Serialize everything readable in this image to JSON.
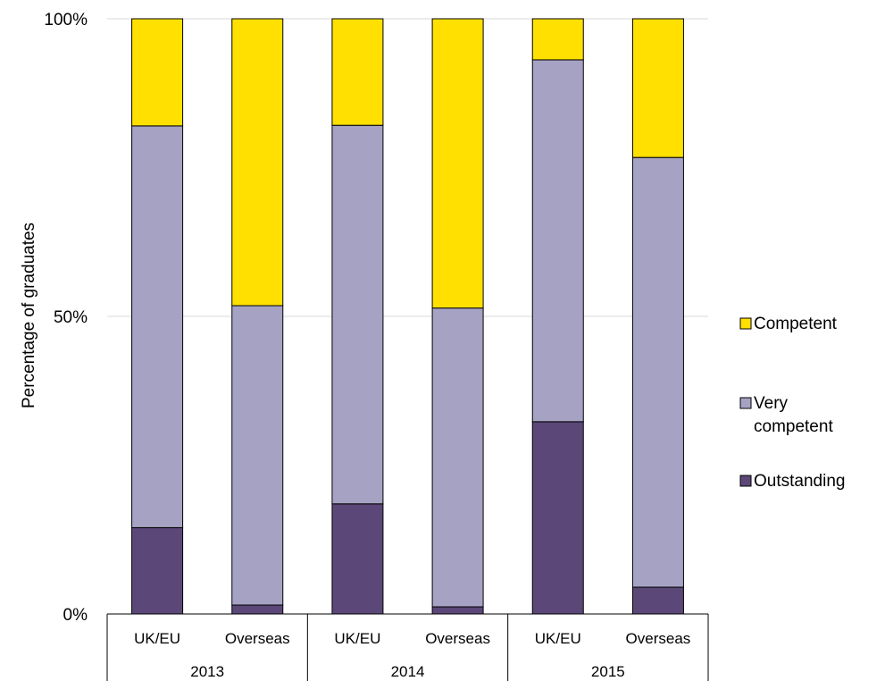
{
  "chart_data": {
    "type": "bar",
    "stacked": true,
    "normalized": true,
    "ylabel": "Percentage of graduates",
    "ylim": [
      0,
      100
    ],
    "yticks": [
      {
        "value": 0,
        "label": "0%"
      },
      {
        "value": 50,
        "label": "50%"
      },
      {
        "value": 100,
        "label": "100%"
      }
    ],
    "categories": [
      "UK/EU",
      "Overseas",
      "UK/EU",
      "Overseas",
      "UK/EU",
      "Overseas"
    ],
    "groups": [
      {
        "label": "2013",
        "span": [
          0,
          1
        ]
      },
      {
        "label": "2014",
        "span": [
          2,
          3
        ]
      },
      {
        "label": "2015",
        "span": [
          4,
          5
        ]
      }
    ],
    "series": [
      {
        "name": "Outstanding",
        "color": "#5b4778",
        "values": [
          14.5,
          1.5,
          18.5,
          1.2,
          32.3,
          4.5
        ]
      },
      {
        "name": "Very competent",
        "color": "#a6a2c4",
        "values": [
          67.5,
          50.3,
          63.6,
          50.2,
          60.8,
          72.2
        ]
      },
      {
        "name": "Competent",
        "color": "#ffe000",
        "values": [
          18.0,
          48.2,
          17.9,
          48.6,
          6.9,
          23.3
        ]
      }
    ],
    "legend": {
      "placement": "right",
      "entries": [
        {
          "name": "Competent",
          "color": "#ffe000",
          "lines": [
            "Competent"
          ]
        },
        {
          "name": "Very competent",
          "color": "#a6a2c4",
          "lines": [
            "Very",
            "competent"
          ]
        },
        {
          "name": "Outstanding",
          "color": "#5b4778",
          "lines": [
            "Outstanding"
          ]
        }
      ]
    },
    "grid": true
  }
}
